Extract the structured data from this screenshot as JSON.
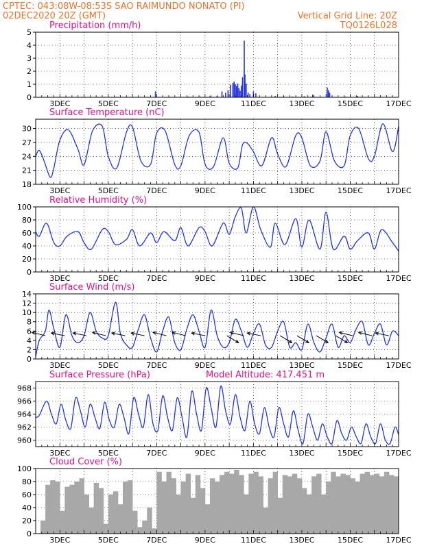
{
  "header": {
    "station": "CPTEC:   043:08W-08:53S  SAO RAIMUNDO NONATO (PI)",
    "date": "02DEC2020 20Z (GMT)",
    "gridline": "Vertical Grid Line: 20Z",
    "code": "TQ0126L028"
  },
  "colors": {
    "header": "#e8742a",
    "title": "#e0108c",
    "line": "#2233dd",
    "bar": "#2233dd",
    "cloud": "#a8a8a8",
    "wind_arrow": "#000000"
  },
  "chart_data": [
    {
      "type": "bar",
      "title": "Precipitation (mm/h)",
      "x_unit": "day of December 2020 (GMT)",
      "xlim": [
        2.0,
        17.0
      ],
      "ylim": [
        0,
        5
      ],
      "yticks": [
        0,
        1,
        2,
        3,
        4,
        5
      ],
      "xtick_labels": [
        "3DEC",
        "5DEC",
        "7DEC",
        "9DEC",
        "11DEC",
        "13DEC",
        "15DEC",
        "17DEC"
      ],
      "x": [
        6.95,
        8.3,
        8.8,
        9.2,
        9.5,
        9.7,
        9.85,
        9.95,
        10.05,
        10.15,
        10.2,
        10.25,
        10.3,
        10.35,
        10.4,
        10.45,
        10.5,
        10.55,
        10.62,
        10.65,
        10.7,
        10.78,
        10.85,
        11.0,
        11.1,
        11.9,
        12.25,
        12.6,
        13.1,
        13.45,
        14.05,
        14.1,
        14.15,
        14.8,
        15.3
      ],
      "values": [
        0.45,
        0.05,
        0.05,
        0.08,
        0.1,
        0.45,
        0.35,
        0.55,
        0.95,
        1.1,
        1.2,
        1.0,
        0.85,
        1.05,
        0.7,
        0.5,
        0.9,
        1.55,
        4.35,
        1.75,
        1.05,
        0.35,
        0.25,
        0.45,
        0.3,
        0.1,
        0.08,
        0.05,
        0.08,
        0.2,
        0.75,
        0.55,
        0.35,
        0.05,
        0.1
      ],
      "grid": true
    },
    {
      "type": "line",
      "title": "Surface Temperature (nC)",
      "xlim": [
        2.0,
        17.0
      ],
      "ylim": [
        18,
        32
      ],
      "yticks": [
        18,
        21,
        24,
        27,
        30
      ],
      "xtick_labels": [
        "3DEC",
        "5DEC",
        "7DEC",
        "9DEC",
        "11DEC",
        "13DEC",
        "15DEC",
        "17DEC"
      ],
      "x": [
        2.0,
        2.15,
        2.35,
        2.6,
        2.75,
        3.0,
        3.35,
        3.75,
        4.0,
        4.35,
        4.75,
        5.0,
        5.35,
        5.75,
        6.0,
        6.35,
        6.75,
        7.0,
        7.35,
        7.75,
        8.0,
        8.35,
        8.75,
        9.0,
        9.35,
        9.75,
        10.0,
        10.35,
        10.55,
        10.75,
        11.0,
        11.35,
        11.75,
        12.0,
        12.35,
        12.75,
        13.0,
        13.35,
        13.75,
        14.0,
        14.35,
        14.75,
        15.0,
        15.35,
        15.75,
        16.0,
        16.35,
        16.75,
        17.0
      ],
      "values": [
        24.0,
        25.3,
        23.0,
        19.5,
        21.5,
        27.5,
        29.7,
        25.5,
        22.2,
        29.5,
        30.5,
        24.0,
        21.5,
        29.2,
        30.3,
        23.0,
        22.3,
        29.0,
        29.5,
        22.2,
        22.0,
        28.5,
        29.2,
        22.3,
        21.8,
        28.0,
        22.5,
        21.5,
        26.5,
        26.8,
        25.0,
        22.0,
        28.0,
        24.5,
        21.8,
        28.5,
        28.0,
        22.0,
        23.0,
        29.3,
        23.0,
        22.0,
        28.5,
        30.0,
        23.5,
        24.0,
        31.0,
        25.0,
        30.5
      ],
      "grid": true
    },
    {
      "type": "line",
      "title": "Relative Humidity (%)",
      "xlim": [
        2.0,
        17.0
      ],
      "ylim": [
        0,
        100
      ],
      "yticks": [
        0,
        20,
        40,
        60,
        80,
        100
      ],
      "xtick_labels": [
        "3DEC",
        "5DEC",
        "7DEC",
        "9DEC",
        "11DEC",
        "13DEC",
        "15DEC",
        "17DEC"
      ],
      "x": [
        2.0,
        2.15,
        2.45,
        2.75,
        3.0,
        3.3,
        3.75,
        4.0,
        4.3,
        4.75,
        5.0,
        5.3,
        5.75,
        6.0,
        6.3,
        6.75,
        7.0,
        7.3,
        7.75,
        8.0,
        8.3,
        8.75,
        9.0,
        9.3,
        9.75,
        10.0,
        10.25,
        10.5,
        10.7,
        11.0,
        11.3,
        11.7,
        11.9,
        12.3,
        12.75,
        13.0,
        13.3,
        13.75,
        14.0,
        14.3,
        14.75,
        15.0,
        15.3,
        15.75,
        16.0,
        16.3,
        16.75,
        17.0
      ],
      "values": [
        62.0,
        55.0,
        75.0,
        45.0,
        40.0,
        55.0,
        62.0,
        45.0,
        35.0,
        65.0,
        62.0,
        42.0,
        50.0,
        65.0,
        40.0,
        60.0,
        45.0,
        62.0,
        48.0,
        68.0,
        40.0,
        68.0,
        62.0,
        40.0,
        75.0,
        58.0,
        85.0,
        98.0,
        60.0,
        100.0,
        65.0,
        38.0,
        75.0,
        42.0,
        82.0,
        38.0,
        80.0,
        35.0,
        92.0,
        35.0,
        55.0,
        35.0,
        48.0,
        60.0,
        35.0,
        65.0,
        45.0,
        32.0
      ],
      "grid": true
    },
    {
      "type": "line",
      "title": "Surface Wind (m/s)",
      "xlim": [
        2.0,
        17.0
      ],
      "ylim": [
        0,
        14
      ],
      "yticks": [
        0,
        2,
        4,
        6,
        8,
        10,
        12,
        14
      ],
      "xtick_labels": [
        "3DEC",
        "5DEC",
        "7DEC",
        "9DEC",
        "11DEC",
        "13DEC",
        "15DEC",
        "17DEC"
      ],
      "x": [
        2.0,
        2.15,
        2.4,
        2.55,
        2.75,
        3.0,
        3.25,
        3.5,
        3.75,
        4.0,
        4.25,
        4.5,
        4.75,
        5.0,
        5.3,
        5.5,
        5.75,
        6.0,
        6.25,
        6.5,
        6.75,
        7.0,
        7.25,
        7.5,
        7.75,
        8.0,
        8.25,
        8.5,
        8.75,
        9.0,
        9.25,
        9.5,
        9.75,
        10.0,
        10.25,
        10.5,
        10.75,
        11.0,
        11.25,
        11.5,
        11.75,
        12.0,
        12.25,
        12.5,
        12.75,
        13.0,
        13.25,
        13.5,
        13.75,
        14.0,
        14.25,
        14.5,
        14.75,
        15.0,
        15.25,
        15.5,
        15.75,
        16.0,
        16.25,
        16.5,
        16.75,
        17.0
      ],
      "values": [
        0.5,
        4.0,
        6.0,
        10.5,
        6.5,
        2.5,
        9.5,
        5.0,
        3.5,
        5.0,
        10.0,
        6.0,
        4.5,
        5.0,
        12.2,
        5.5,
        3.0,
        2.5,
        6.5,
        9.5,
        4.5,
        1.5,
        6.0,
        9.0,
        3.5,
        2.0,
        6.5,
        9.5,
        6.0,
        2.5,
        10.5,
        5.0,
        2.5,
        3.5,
        8.5,
        6.0,
        2.5,
        5.5,
        7.5,
        3.0,
        2.5,
        6.0,
        8.0,
        2.5,
        3.5,
        2.0,
        7.5,
        3.5,
        1.5,
        4.5,
        7.5,
        2.5,
        5.0,
        3.5,
        6.5,
        8.0,
        3.0,
        5.5,
        7.5,
        3.0,
        6.0,
        5.0
      ],
      "wind_arrows": {
        "x": [
          2.4,
          3.2,
          4.1,
          4.9,
          5.7,
          6.5,
          7.4,
          8.2,
          9.0,
          9.9,
          10.6,
          11.3,
          12.1,
          12.8,
          13.6,
          14.4,
          15.1,
          15.9,
          16.6
        ],
        "u": [
          -1.0,
          -1.0,
          -1.0,
          -1.0,
          -1.0,
          -1.0,
          -1.0,
          -1.0,
          -1.0,
          0.5,
          -1.0,
          -1.0,
          0.5,
          0.5,
          0.5,
          0.5,
          -1.0,
          -1.0,
          -1.0
        ],
        "v": [
          0.25,
          0.2,
          0.2,
          0.25,
          0.2,
          0.2,
          0.25,
          0.25,
          0.2,
          -0.3,
          0.25,
          0.2,
          -0.3,
          -0.3,
          -0.3,
          -0.3,
          0.25,
          0.25,
          0.2
        ]
      },
      "grid": true
    },
    {
      "type": "line",
      "title": "Surface Pressure (hPa)",
      "annotation": "Model Altitude: 417.451 m",
      "xlim": [
        2.0,
        17.0
      ],
      "ylim": [
        959,
        969
      ],
      "yticks": [
        960,
        962,
        964,
        966,
        968
      ],
      "xtick_labels": [
        "3DEC",
        "5DEC",
        "7DEC",
        "9DEC",
        "11DEC",
        "13DEC",
        "15DEC",
        "17DEC"
      ],
      "x": [
        2.0,
        2.15,
        2.45,
        2.65,
        2.85,
        3.05,
        3.25,
        3.45,
        3.65,
        3.85,
        4.05,
        4.25,
        4.45,
        4.65,
        4.85,
        5.05,
        5.25,
        5.45,
        5.65,
        5.85,
        6.05,
        6.25,
        6.45,
        6.65,
        6.85,
        7.05,
        7.25,
        7.45,
        7.65,
        7.85,
        8.05,
        8.25,
        8.45,
        8.65,
        8.85,
        9.05,
        9.25,
        9.45,
        9.65,
        9.85,
        10.05,
        10.25,
        10.45,
        10.65,
        10.85,
        11.05,
        11.25,
        11.45,
        11.65,
        11.85,
        12.05,
        12.25,
        12.45,
        12.65,
        12.85,
        13.05,
        13.25,
        13.45,
        13.65,
        13.85,
        14.05,
        14.25,
        14.45,
        14.65,
        14.85,
        15.05,
        15.25,
        15.45,
        15.65,
        15.85,
        16.05,
        16.25,
        16.45,
        16.65,
        16.85,
        17.0
      ],
      "values": [
        963.5,
        963.8,
        966.0,
        964.0,
        962.5,
        965.5,
        963.0,
        961.8,
        966.5,
        964.5,
        962.0,
        965.5,
        963.5,
        961.8,
        965.8,
        963.0,
        962.0,
        965.5,
        963.5,
        961.0,
        966.5,
        964.0,
        962.0,
        967.0,
        962.5,
        961.5,
        966.8,
        963.5,
        961.5,
        966.5,
        963.5,
        960.5,
        967.5,
        964.0,
        961.5,
        968.0,
        965.0,
        962.0,
        968.3,
        964.5,
        962.5,
        967.0,
        963.5,
        961.5,
        966.0,
        962.5,
        961.0,
        965.0,
        962.0,
        960.5,
        965.0,
        962.5,
        960.5,
        964.5,
        961.5,
        959.5,
        964.0,
        962.0,
        960.0,
        962.5,
        960.5,
        959.5,
        963.0,
        961.0,
        960.0,
        962.0,
        960.5,
        959.5,
        962.5,
        960.5,
        959.5,
        962.5,
        960.0,
        959.5,
        962.0,
        960.8
      ],
      "grid": true
    },
    {
      "type": "bar",
      "title": "Cloud Cover (%)",
      "xlim": [
        2.0,
        17.0
      ],
      "ylim": [
        0,
        100
      ],
      "yticks": [
        0,
        20,
        40,
        60,
        80,
        100
      ],
      "xtick_labels": [
        "3DEC",
        "5DEC",
        "7DEC",
        "9DEC",
        "11DEC",
        "13DEC",
        "15DEC",
        "17DEC"
      ],
      "x": [
        2.0,
        2.2,
        2.4,
        2.6,
        2.8,
        3.0,
        3.2,
        3.4,
        3.6,
        3.8,
        4.0,
        4.2,
        4.4,
        4.6,
        4.8,
        5.0,
        5.2,
        5.4,
        5.6,
        5.8,
        6.0,
        6.2,
        6.4,
        6.6,
        6.8,
        7.0,
        7.2,
        7.4,
        7.6,
        7.8,
        8.0,
        8.2,
        8.4,
        8.6,
        8.8,
        9.0,
        9.2,
        9.4,
        9.6,
        9.8,
        10.0,
        10.2,
        10.4,
        10.6,
        10.8,
        11.0,
        11.2,
        11.4,
        11.6,
        11.8,
        12.0,
        12.2,
        12.4,
        12.6,
        12.8,
        13.0,
        13.2,
        13.4,
        13.6,
        13.8,
        14.0,
        14.2,
        14.4,
        14.6,
        14.8,
        15.0,
        15.2,
        15.4,
        15.6,
        15.8,
        16.0,
        16.2,
        16.4,
        16.6,
        16.8
      ],
      "values": [
        0,
        20,
        75,
        82,
        80,
        35,
        72,
        75,
        80,
        85,
        60,
        40,
        78,
        70,
        15,
        60,
        65,
        45,
        80,
        82,
        35,
        10,
        20,
        40,
        8,
        95,
        80,
        95,
        85,
        60,
        80,
        92,
        55,
        90,
        70,
        45,
        85,
        80,
        90,
        95,
        92,
        98,
        90,
        60,
        92,
        95,
        88,
        40,
        85,
        95,
        55,
        90,
        88,
        92,
        85,
        70,
        60,
        88,
        92,
        60,
        80,
        95,
        88,
        92,
        90,
        85,
        80,
        92,
        95,
        90,
        92,
        88,
        95,
        90,
        88
      ],
      "grid": true
    }
  ]
}
